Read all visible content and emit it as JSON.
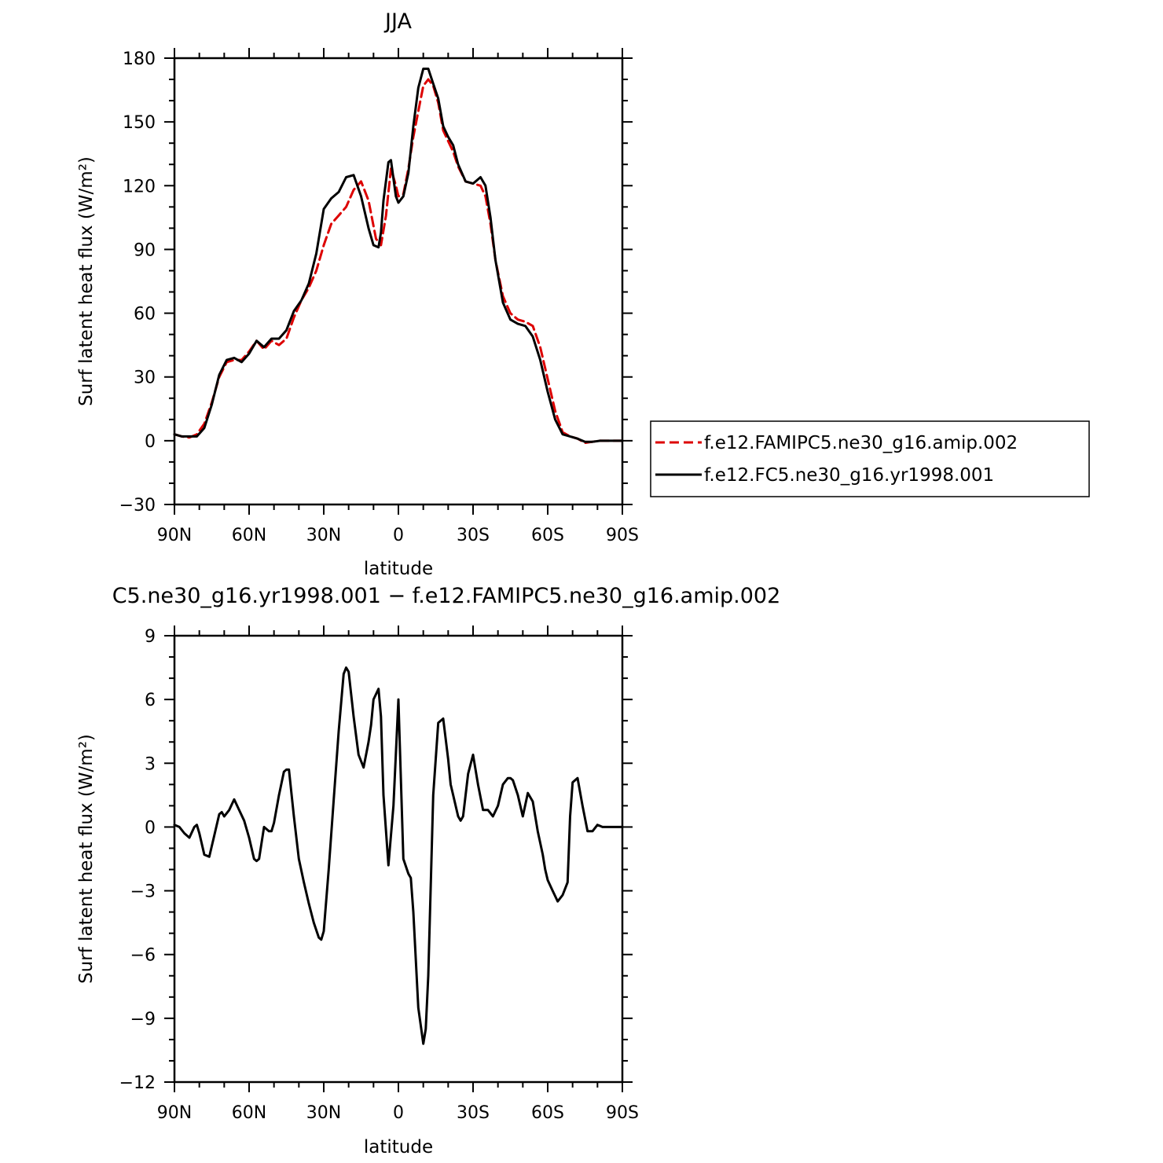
{
  "chart_data": [
    {
      "type": "line",
      "title": "JJA",
      "xlabel": "latitude",
      "ylabel": "Surf latent heat flux (W/m²)",
      "xlim": [
        90,
        -90
      ],
      "ylim": [
        -30,
        180
      ],
      "xticks": [
        90,
        60,
        30,
        0,
        -30,
        -60,
        -90
      ],
      "xtick_labels": [
        "90N",
        "60N",
        "30N",
        "0",
        "30S",
        "60S",
        "90S"
      ],
      "yticks": [
        -30,
        0,
        30,
        60,
        90,
        120,
        150,
        180
      ],
      "ytick_labels": [
        "−30",
        "0",
        "30",
        "60",
        "90",
        "120",
        "150",
        "180"
      ],
      "legend_position": "right",
      "series": [
        {
          "name": "f.e12.FAMIPC5.ne30_g16.amip.002",
          "color": "#dd0000",
          "dash": "dashed",
          "x": [
            90,
            87,
            84,
            81,
            78,
            75,
            72,
            69,
            66,
            63,
            60,
            57,
            54,
            51,
            48,
            45,
            42,
            39,
            36,
            33,
            30,
            27,
            24,
            21,
            18,
            15,
            12,
            9,
            7,
            5,
            3,
            1,
            0,
            -2,
            -4,
            -6,
            -8,
            -10,
            -12,
            -14,
            -16,
            -18,
            -20,
            -22,
            -24,
            -27,
            -30,
            -33,
            -35,
            -37,
            -39,
            -42,
            -45,
            -48,
            -51,
            -54,
            -57,
            -60,
            -63,
            -66,
            -69,
            -72,
            -75,
            -78,
            -81,
            -84,
            -87,
            -90
          ],
          "y": [
            3,
            2,
            1.5,
            3,
            8,
            18,
            30,
            37,
            38,
            38,
            42,
            47,
            43,
            47,
            45,
            48,
            58,
            66,
            72,
            80,
            92,
            102,
            106,
            110,
            118,
            122,
            113,
            95,
            92,
            106,
            128,
            120,
            115,
            116,
            128,
            143,
            155,
            167,
            170,
            167,
            159,
            146,
            141,
            136,
            129,
            122,
            121,
            120,
            115,
            102,
            85,
            68,
            60,
            57,
            56,
            54,
            44,
            29,
            14,
            4,
            2,
            1,
            -1,
            -0.5,
            0,
            0,
            0,
            0
          ]
        },
        {
          "name": "f.e12.FC5.ne30_g16.yr1998.001",
          "color": "#000000",
          "dash": "solid",
          "x": [
            90,
            87,
            84,
            81,
            78,
            75,
            72,
            69,
            66,
            63,
            60,
            57,
            54,
            51,
            48,
            45,
            42,
            39,
            36,
            33,
            30,
            27,
            24,
            21,
            18,
            15,
            12,
            10,
            8,
            7,
            6,
            4,
            3,
            1,
            0,
            -2,
            -4,
            -6,
            -8,
            -10,
            -12,
            -14,
            -16,
            -18,
            -20,
            -22,
            -24,
            -27,
            -30,
            -33,
            -35,
            -37,
            -39,
            -42,
            -45,
            -48,
            -51,
            -54,
            -57,
            -60,
            -63,
            -66,
            -69,
            -72,
            -75,
            -78,
            -81,
            -84,
            -87,
            -90
          ],
          "y": [
            3,
            2,
            2,
            2,
            6,
            17,
            31,
            38,
            39,
            37,
            41,
            47,
            44,
            48,
            48,
            52,
            61,
            66,
            74,
            88,
            109,
            114,
            117,
            124,
            125,
            115,
            100,
            92,
            91,
            98,
            113,
            131,
            132,
            115,
            112,
            115,
            126,
            148,
            166,
            175,
            175,
            168,
            161,
            148,
            143,
            139,
            130,
            122,
            121,
            124,
            120,
            105,
            85,
            65,
            57,
            55,
            54,
            49,
            38,
            23,
            10,
            3,
            2,
            1,
            -0.5,
            -0.5,
            0,
            0,
            0,
            0
          ]
        }
      ]
    },
    {
      "type": "line",
      "title": "C5.ne30_g16.yr1998.001 − f.e12.FAMIPC5.ne30_g16.amip.002",
      "xlabel": "latitude",
      "ylabel": "Surf latent heat flux (W/m²)",
      "xlim": [
        90,
        -90
      ],
      "ylim": [
        -12,
        9
      ],
      "xticks": [
        90,
        60,
        30,
        0,
        -30,
        -60,
        -90
      ],
      "xtick_labels": [
        "90N",
        "60N",
        "30N",
        "0",
        "30S",
        "60S",
        "90S"
      ],
      "yticks": [
        -12,
        -9,
        -6,
        -3,
        0,
        3,
        6,
        9
      ],
      "ytick_labels": [
        "−12",
        "−9",
        "−6",
        "−3",
        "0",
        "3",
        "6",
        "9"
      ],
      "series": [
        {
          "color": "#000000",
          "dash": "solid",
          "x": [
            90,
            88,
            86,
            84,
            82,
            81,
            80,
            78,
            76,
            74,
            72,
            71,
            70,
            68,
            66,
            64,
            62,
            60,
            58,
            57,
            56,
            54,
            52,
            51,
            50,
            48,
            46,
            45,
            44,
            42,
            40,
            38,
            36,
            34,
            32,
            31,
            30,
            28,
            26,
            24,
            22,
            21,
            20,
            18,
            16,
            14,
            12,
            11,
            10,
            8,
            7,
            6,
            4,
            2,
            0,
            -2,
            -4,
            -5,
            -6,
            -8,
            -10,
            -11,
            -12,
            -14,
            -16,
            -18,
            -20,
            -21,
            -22,
            -24,
            -25,
            -26,
            -28,
            -30,
            -32,
            -34,
            -36,
            -38,
            -40,
            -42,
            -44,
            -45,
            -46,
            -48,
            -50,
            -52,
            -54,
            -56,
            -58,
            -59,
            -60,
            -62,
            -64,
            -66,
            -68,
            -69,
            -70,
            -72,
            -74,
            -76,
            -78,
            -80,
            -82,
            -84,
            -86,
            -88,
            -90
          ],
          "y": [
            0.1,
            0,
            -0.3,
            -0.5,
            0,
            0.1,
            -0.3,
            -1.3,
            -1.4,
            -0.4,
            0.6,
            0.7,
            0.5,
            0.8,
            1.3,
            0.8,
            0.3,
            -0.5,
            -1.5,
            -1.6,
            -1.5,
            0,
            -0.2,
            -0.2,
            0.2,
            1.5,
            2.6,
            2.7,
            2.7,
            0.5,
            -1.5,
            -2.6,
            -3.6,
            -4.5,
            -5.2,
            -5.3,
            -4.9,
            -2.0,
            1.3,
            4.5,
            7.2,
            7.5,
            7.3,
            5.2,
            3.4,
            2.8,
            4.0,
            4.8,
            6.0,
            6.5,
            5.2,
            1.5,
            -1.8,
            1.0,
            6.0,
            -1.5,
            -2.2,
            -2.4,
            -4.0,
            -8.5,
            -10.2,
            -9.5,
            -7.0,
            1.5,
            4.9,
            5.1,
            3.2,
            2.0,
            1.5,
            0.5,
            0.3,
            0.5,
            2.5,
            3.4,
            2.0,
            0.8,
            0.8,
            0.5,
            1.0,
            2.0,
            2.3,
            2.3,
            2.2,
            1.5,
            0.5,
            1.6,
            1.2,
            -0.2,
            -1.3,
            -2.0,
            -2.5,
            -3.0,
            -3.5,
            -3.2,
            -2.6,
            0.5,
            2.1,
            2.3,
            1.0,
            -0.2,
            -0.2,
            0.1,
            0,
            0,
            0,
            0,
            0
          ]
        }
      ]
    }
  ]
}
